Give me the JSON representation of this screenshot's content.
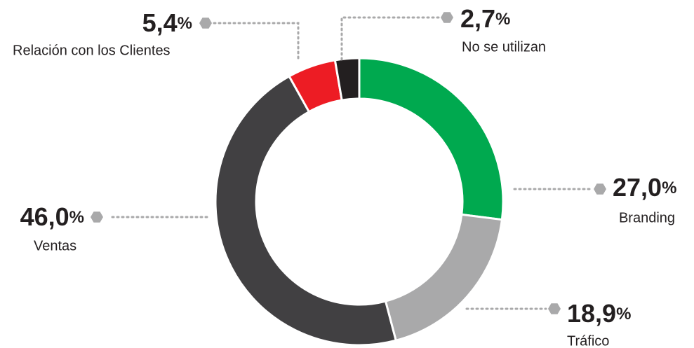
{
  "chart_data": {
    "type": "donut",
    "categories": [
      "Branding",
      "Tráfico",
      "Ventas",
      "Relación con los Clientes",
      "No se utilizan"
    ],
    "values": [
      27.0,
      18.9,
      46.0,
      5.4,
      2.7
    ],
    "value_labels": [
      "27,0%",
      "18,9%",
      "46,0%",
      "5,4%",
      "2,7%"
    ],
    "colors": [
      "#00a94f",
      "#a9a9aa",
      "#414042",
      "#ed1c24",
      "#231f20"
    ]
  }
}
